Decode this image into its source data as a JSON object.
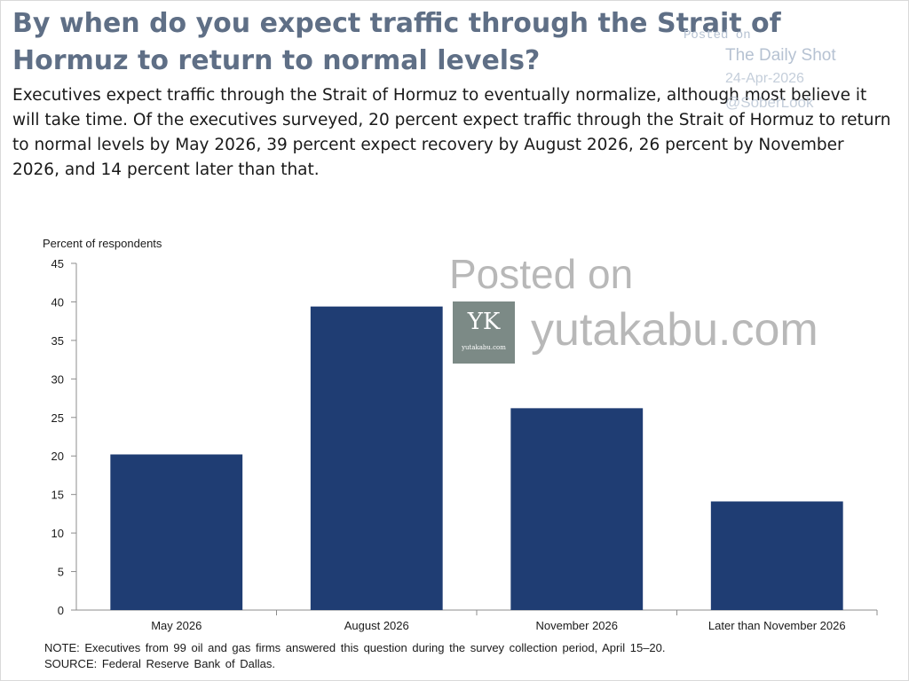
{
  "headline": "By when do you expect traffic through the Strait of Hormuz to return to normal levels?",
  "summary": "Executives expect traffic through the Strait of Hormuz to eventually normalize, although most believe it will take time. Of the executives surveyed, 20 percent expect traffic through the Strait of Hormuz to return to normal levels by May 2026, 39 percent expect recovery by August 2026, 26 percent by November 2026, and 14 percent later than that.",
  "watermark_small": {
    "line1": "Posted on",
    "line2": "The Daily Shot",
    "line3": "24-Apr-2026",
    "line4": "@SoberLook"
  },
  "watermark_big": {
    "posted": "Posted on",
    "logo_mark": "YK",
    "logo_site": "yutakabu.com",
    "domain": "yutakabu.com",
    "logo_color": "#7c8a86"
  },
  "chart_data": {
    "type": "bar",
    "ylabel": "Percent of respondents",
    "categories": [
      "May 2026",
      "August 2026",
      "November 2026",
      "Later than November 2026"
    ],
    "values": [
      20.2,
      39.4,
      26.2,
      14.1
    ],
    "ylim": [
      0,
      45
    ],
    "yticks": [
      0,
      5,
      10,
      15,
      20,
      25,
      30,
      35,
      40,
      45
    ],
    "grid": false,
    "bar_color": "#1f3d73"
  },
  "notes": {
    "note": "NOTE: Executives from 99 oil and gas firms answered this question during the survey collection period, April 15–20.",
    "source": "SOURCE: Federal Reserve Bank of Dallas."
  }
}
